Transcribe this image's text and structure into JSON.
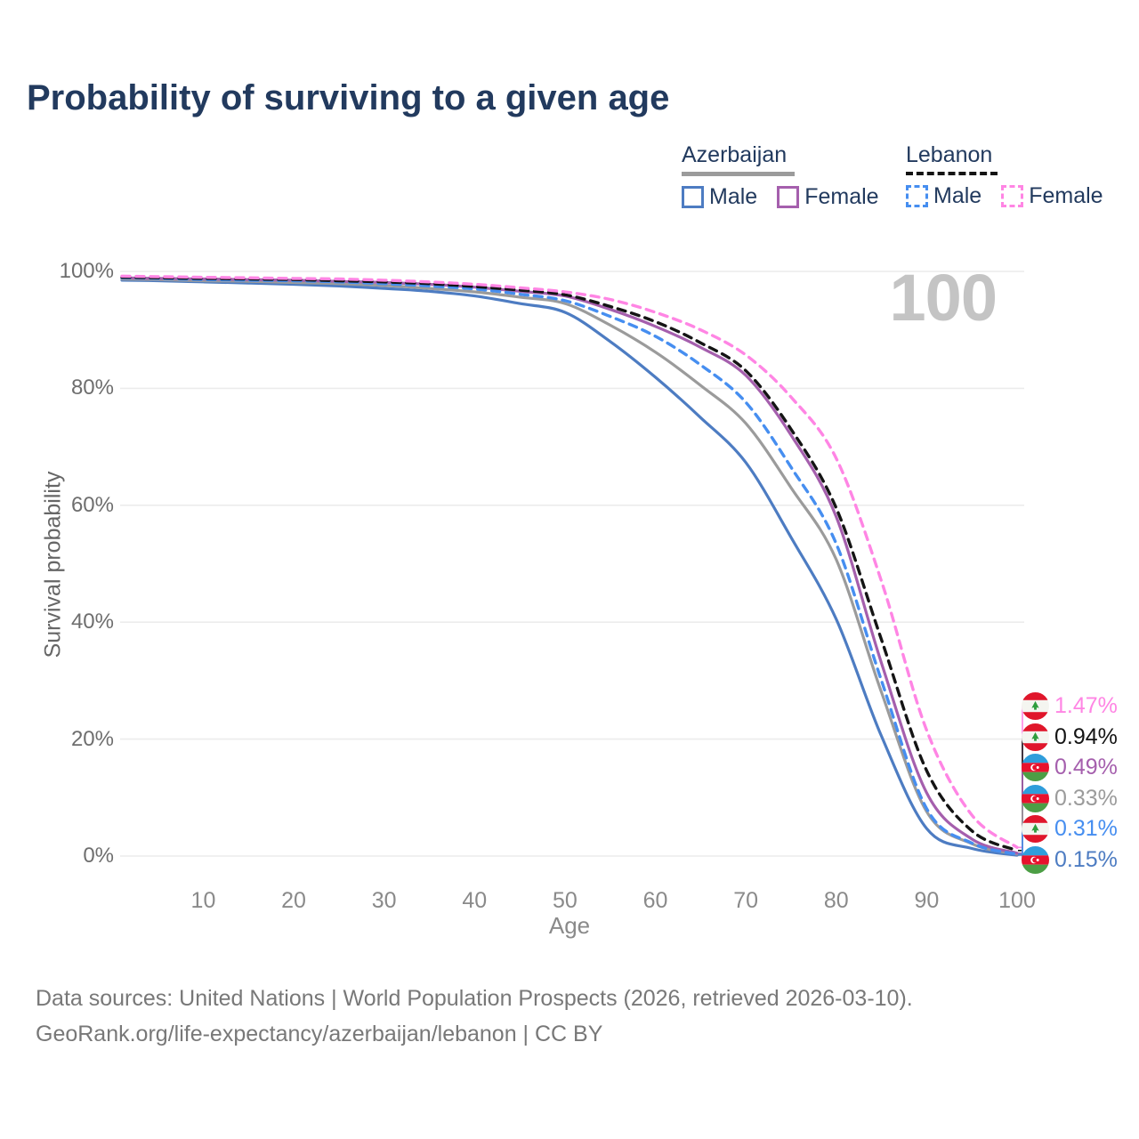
{
  "title": "Probability of surviving to a given age",
  "watermark_age": "100",
  "legend": {
    "groups": [
      {
        "label": "Azerbaijan",
        "underline_style": "solid",
        "underline_color": "#9b9b9b",
        "items": [
          {
            "label": "Male",
            "color": "#4d7cc2",
            "dashed": false
          },
          {
            "label": "Female",
            "color": "#a55fad",
            "dashed": false
          }
        ]
      },
      {
        "label": "Lebanon",
        "underline_style": "dashed",
        "underline_color": "#141414",
        "items": [
          {
            "label": "Male",
            "color": "#468ef0",
            "dashed": true
          },
          {
            "label": "Female",
            "color": "#ff85e4",
            "dashed": true
          }
        ]
      }
    ]
  },
  "chart_data": {
    "type": "line",
    "title": "Probability of surviving to a given age",
    "xlabel": "Age",
    "ylabel": "Survival probability",
    "xlim": [
      1,
      100
    ],
    "ylim": [
      0,
      100
    ],
    "grid": "horizontal",
    "x_ticks": [
      10,
      20,
      30,
      40,
      50,
      60,
      70,
      80,
      90,
      100
    ],
    "y_tick_values": [
      0,
      20,
      40,
      60,
      80,
      100
    ],
    "y_tick_labels": [
      "0%",
      "20%",
      "40%",
      "60%",
      "80%",
      "100%"
    ],
    "x": [
      1,
      5,
      10,
      15,
      20,
      25,
      30,
      35,
      40,
      45,
      50,
      55,
      60,
      65,
      70,
      75,
      80,
      85,
      90,
      95,
      100
    ],
    "series": [
      {
        "id": "az-male",
        "name": "Azerbaijan Male",
        "country": "Azerbaijan",
        "sex": "Male",
        "color": "#4d7cc2",
        "dashed": false,
        "flag": "azerbaijan",
        "end_label": "0.15%",
        "values": [
          98.5,
          98.4,
          98.2,
          98.0,
          97.8,
          97.5,
          97.1,
          96.6,
          95.8,
          94.5,
          93.0,
          88.0,
          81.9,
          75.0,
          67.3,
          54.5,
          40.5,
          20.5,
          4.7,
          1.3,
          0.15
        ]
      },
      {
        "id": "az-total",
        "name": "Azerbaijan Both sexes",
        "country": "Azerbaijan",
        "sex": "Both",
        "color": "#9b9b9b",
        "dashed": false,
        "flag": "azerbaijan",
        "end_label": "0.33%",
        "values": [
          98.7,
          98.6,
          98.4,
          98.3,
          98.1,
          97.9,
          97.6,
          97.1,
          96.5,
          95.6,
          94.5,
          90.8,
          86.2,
          80.5,
          74.0,
          63.0,
          50.7,
          28.0,
          7.6,
          2.1,
          0.33
        ]
      },
      {
        "id": "az-female",
        "name": "Azerbaijan Female",
        "country": "Azerbaijan",
        "sex": "Female",
        "color": "#a55fad",
        "dashed": false,
        "flag": "azerbaijan",
        "end_label": "0.49%",
        "values": [
          98.9,
          98.8,
          98.7,
          98.6,
          98.5,
          98.3,
          98.1,
          97.8,
          97.3,
          96.6,
          95.8,
          93.5,
          90.6,
          87.0,
          82.2,
          72.0,
          58.0,
          33.0,
          10.8,
          2.9,
          0.49
        ]
      },
      {
        "id": "lb-male",
        "name": "Lebanon Male",
        "country": "Lebanon",
        "sex": "Male",
        "color": "#468ef0",
        "dashed": true,
        "flag": "lebanon",
        "end_label": "0.31%",
        "values": [
          98.9,
          98.8,
          98.6,
          98.5,
          98.4,
          98.2,
          97.9,
          97.5,
          97.0,
          96.1,
          95.0,
          92.3,
          88.9,
          84.0,
          77.6,
          66.5,
          53.4,
          30.0,
          8.1,
          2.2,
          0.31
        ]
      },
      {
        "id": "lb-total",
        "name": "Lebanon Both sexes",
        "country": "Lebanon",
        "sex": "Both",
        "color": "#141414",
        "dashed": true,
        "flag": "lebanon",
        "end_label": "0.94%",
        "values": [
          99.0,
          98.9,
          98.8,
          98.7,
          98.6,
          98.4,
          98.2,
          97.9,
          97.4,
          96.8,
          96.0,
          94.0,
          91.4,
          87.8,
          83.0,
          73.0,
          59.5,
          37.0,
          14.6,
          4.3,
          0.94
        ]
      },
      {
        "id": "lb-female",
        "name": "Lebanon Female",
        "country": "Lebanon",
        "sex": "Female",
        "color": "#ff85e4",
        "dashed": true,
        "flag": "lebanon",
        "end_label": "1.47%",
        "values": [
          99.2,
          99.1,
          99.0,
          98.9,
          98.8,
          98.7,
          98.5,
          98.2,
          97.8,
          97.2,
          96.5,
          95.2,
          93.0,
          90.0,
          85.7,
          78.5,
          68.0,
          47.0,
          21.5,
          7.0,
          1.47
        ]
      }
    ],
    "end_label_order": [
      "lb-female",
      "lb-total",
      "az-female",
      "az-total",
      "lb-male",
      "az-male"
    ],
    "legend_position": "top-right"
  },
  "footer": {
    "line1": "Data sources: United Nations | World Population Prospects (2026, retrieved 2026-03-10).",
    "line2": "GeoRank.org/life-expectancy/azerbaijan/lebanon | CC BY"
  }
}
